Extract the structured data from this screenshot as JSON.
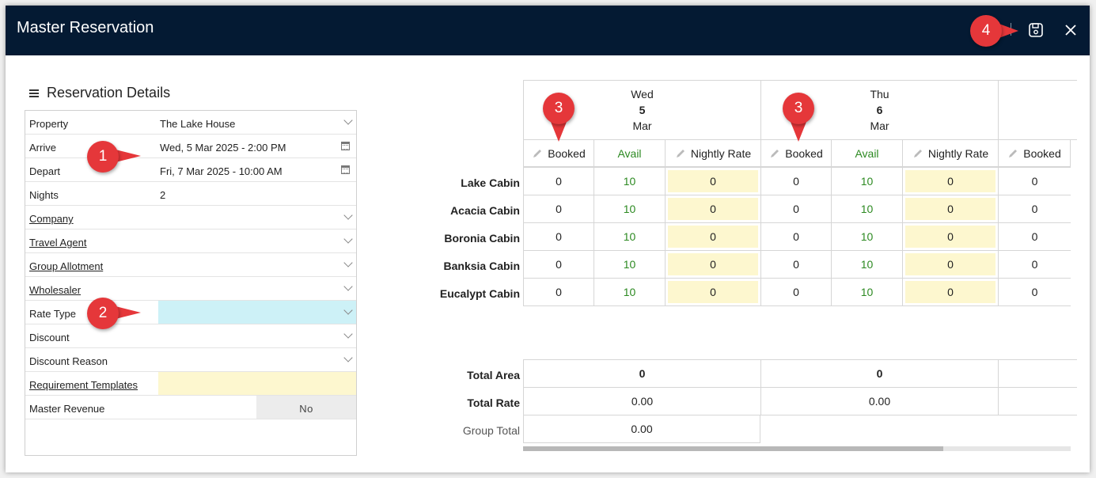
{
  "window": {
    "title": "Master Reservation"
  },
  "toolbar": {
    "save_icon": "save-icon",
    "close_icon": "close-icon"
  },
  "annotations": [
    "1",
    "2",
    "3",
    "3",
    "4"
  ],
  "details": {
    "heading": "Reservation Details",
    "fields": [
      {
        "label": "Property",
        "value": "The Lake House",
        "link": false,
        "control": "dropdown"
      },
      {
        "label": "Arrive",
        "value": "Wed, 5 Mar 2025 - 2:00 PM",
        "link": false,
        "control": "calendar"
      },
      {
        "label": "Depart",
        "value": "Fri, 7 Mar 2025 - 10:00 AM",
        "link": false,
        "control": "calendar"
      },
      {
        "label": "Nights",
        "value": "2",
        "link": false,
        "control": "none"
      },
      {
        "label": "Company",
        "value": "",
        "link": true,
        "control": "dropdown"
      },
      {
        "label": "Travel Agent",
        "value": "",
        "link": true,
        "control": "dropdown"
      },
      {
        "label": "Group Allotment",
        "value": "",
        "link": true,
        "control": "dropdown"
      },
      {
        "label": "Wholesaler",
        "value": "",
        "link": true,
        "control": "dropdown"
      },
      {
        "label": "Rate Type",
        "value": "",
        "link": false,
        "control": "dropdown-highlight"
      },
      {
        "label": "Discount",
        "value": "",
        "link": false,
        "control": "dropdown"
      },
      {
        "label": "Discount Reason",
        "value": "",
        "link": false,
        "control": "dropdown"
      },
      {
        "label": "Requirement Templates",
        "value": "",
        "link": true,
        "control": "yellow"
      },
      {
        "label": "Master Revenue",
        "value": "No",
        "link": false,
        "control": "toggle"
      }
    ]
  },
  "calendar": {
    "days": [
      {
        "dow": "Wed",
        "date": "5",
        "month": "Mar"
      },
      {
        "dow": "Thu",
        "date": "6",
        "month": "Mar"
      }
    ],
    "column_headers": {
      "booked": "Booked",
      "avail": "Avail",
      "rate": "Nightly Rate"
    },
    "rows": [
      {
        "name": "Lake Cabin",
        "values": [
          "0",
          "10",
          "0",
          "0",
          "10",
          "0",
          "0"
        ]
      },
      {
        "name": "Acacia Cabin",
        "values": [
          "0",
          "10",
          "0",
          "0",
          "10",
          "0",
          "0"
        ]
      },
      {
        "name": "Boronia Cabin",
        "values": [
          "0",
          "10",
          "0",
          "0",
          "10",
          "0",
          "0"
        ]
      },
      {
        "name": "Banksia Cabin",
        "values": [
          "0",
          "10",
          "0",
          "0",
          "10",
          "0",
          "0"
        ]
      },
      {
        "name": "Eucalypt Cabin",
        "values": [
          "0",
          "10",
          "0",
          "0",
          "10",
          "0",
          "0"
        ]
      }
    ],
    "totals": {
      "area_label": "Total Area",
      "area_values": [
        "0",
        "0"
      ],
      "rate_label": "Total Rate",
      "rate_values": [
        "0.00",
        "0.00"
      ],
      "group_label": "Group Total",
      "group_value": "0.00"
    }
  },
  "colors": {
    "titlebar": "#041a33",
    "badge": "#e5373a",
    "avail": "#2d8a22",
    "rate_fill": "#fdf7cf",
    "rate_type_fill": "#cdf1f7"
  }
}
